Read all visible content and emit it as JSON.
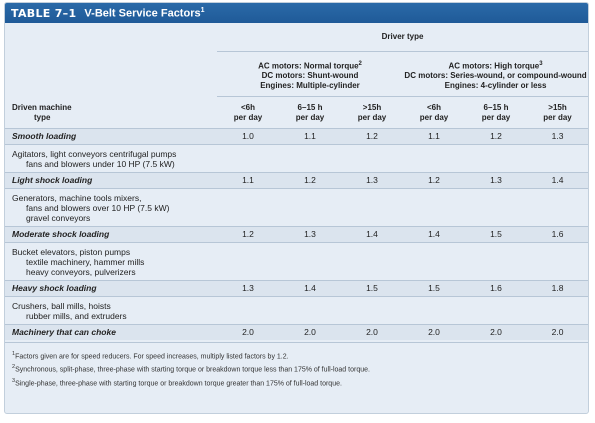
{
  "title": {
    "num": "TABLE 7–1",
    "text": "V-Belt Service Factors",
    "sup": "1"
  },
  "header": {
    "driver_type": "Driver type",
    "groups": [
      {
        "lines": [
          "AC motors: Normal torque",
          "DC motors: Shunt-wound",
          "Engines: Multiple-cylinder"
        ],
        "sup": "2"
      },
      {
        "lines": [
          "AC motors: High torque",
          "DC motors: Series-wound, or compound-wound",
          "Engines: 4-cylinder or less"
        ],
        "sup": "3"
      }
    ],
    "driven_label": [
      "Driven machine",
      "type"
    ],
    "cols": [
      [
        "<6h",
        "per day"
      ],
      [
        "6–15 h",
        "per day"
      ],
      [
        ">15h",
        "per day"
      ],
      [
        "<6h",
        "per day"
      ],
      [
        "6–15 h",
        "per day"
      ],
      [
        ">15h",
        "per day"
      ]
    ]
  },
  "rows": [
    {
      "name": "Smooth loading",
      "values": [
        "1.0",
        "1.1",
        "1.2",
        "1.1",
        "1.2",
        "1.3"
      ],
      "desc": [
        "Agitators, light conveyors centrifugal pumps",
        "fans and blowers under 10 HP (7.5 kW)"
      ]
    },
    {
      "name": "Light shock loading",
      "values": [
        "1.1",
        "1.2",
        "1.3",
        "1.2",
        "1.3",
        "1.4"
      ],
      "desc": [
        "Generators, machine tools mixers,",
        "fans and blowers over 10 HP (7.5 kW)",
        "gravel conveyors"
      ]
    },
    {
      "name": "Moderate shock loading",
      "values": [
        "1.2",
        "1.3",
        "1.4",
        "1.4",
        "1.5",
        "1.6"
      ],
      "desc": [
        "Bucket elevators, piston pumps",
        "textile machinery, hammer mills",
        "heavy conveyors, pulverizers"
      ]
    },
    {
      "name": "Heavy shock loading",
      "values": [
        "1.3",
        "1.4",
        "1.5",
        "1.5",
        "1.6",
        "1.8"
      ],
      "desc": [
        "Crushers, ball mills, hoists",
        "rubber mills, and extruders"
      ]
    },
    {
      "name": "Machinery that can choke",
      "values": [
        "2.0",
        "2.0",
        "2.0",
        "2.0",
        "2.0",
        "2.0"
      ],
      "desc": []
    }
  ],
  "footnotes": [
    {
      "sup": "1",
      "text": "Factors given are for speed reducers. For speed increases, multiply listed factors by 1.2."
    },
    {
      "sup": "2",
      "text": "Synchronous, split-phase, three-phase with starting torque or breakdown torque less than 175% of full-load torque."
    },
    {
      "sup": "3",
      "text": "Single-phase, three-phase with starting torque or breakdown torque greater than 175% of full-load torque."
    }
  ]
}
